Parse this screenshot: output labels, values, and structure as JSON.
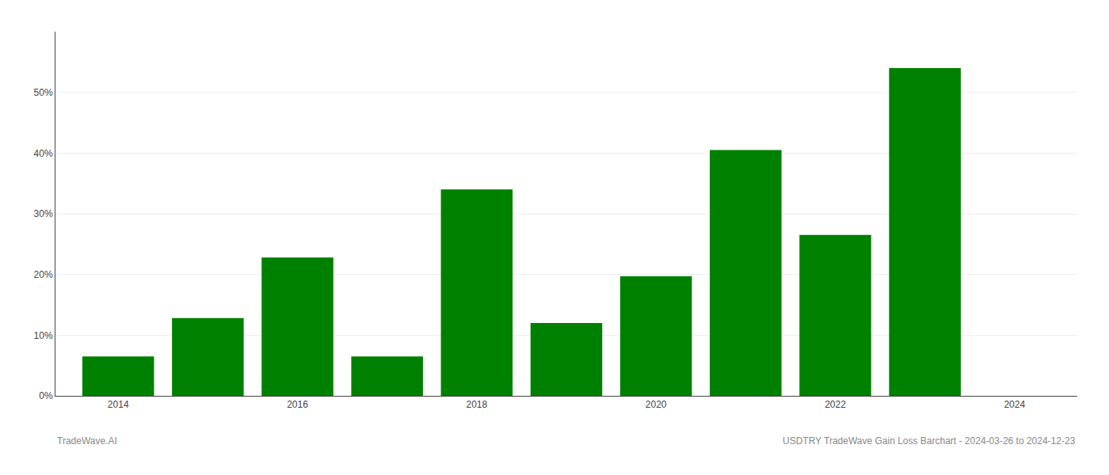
{
  "chart_data": {
    "type": "bar",
    "x": [
      2014,
      2015,
      2016,
      2017,
      2018,
      2019,
      2020,
      2021,
      2022,
      2023
    ],
    "values": [
      0.065,
      0.128,
      0.228,
      0.065,
      0.34,
      0.12,
      0.197,
      0.405,
      0.265,
      0.54
    ],
    "color": "#008000",
    "xlim": [
      2013.3,
      2024.7
    ],
    "xticks": [
      2014,
      2016,
      2018,
      2020,
      2022,
      2024
    ],
    "ylim": [
      0,
      0.6
    ],
    "yticks": [
      {
        "value": 0.0,
        "label": "0%"
      },
      {
        "value": 0.1,
        "label": "10%"
      },
      {
        "value": 0.2,
        "label": "20%"
      },
      {
        "value": 0.3,
        "label": "30%"
      },
      {
        "value": 0.4,
        "label": "40%"
      },
      {
        "value": 0.5,
        "label": "50%"
      }
    ],
    "grid": true,
    "annotations": [
      "TradeWave.AI",
      "USDTRY TradeWave Gain Loss Barchart - 2024-03-26 to 2024-12-23"
    ]
  }
}
